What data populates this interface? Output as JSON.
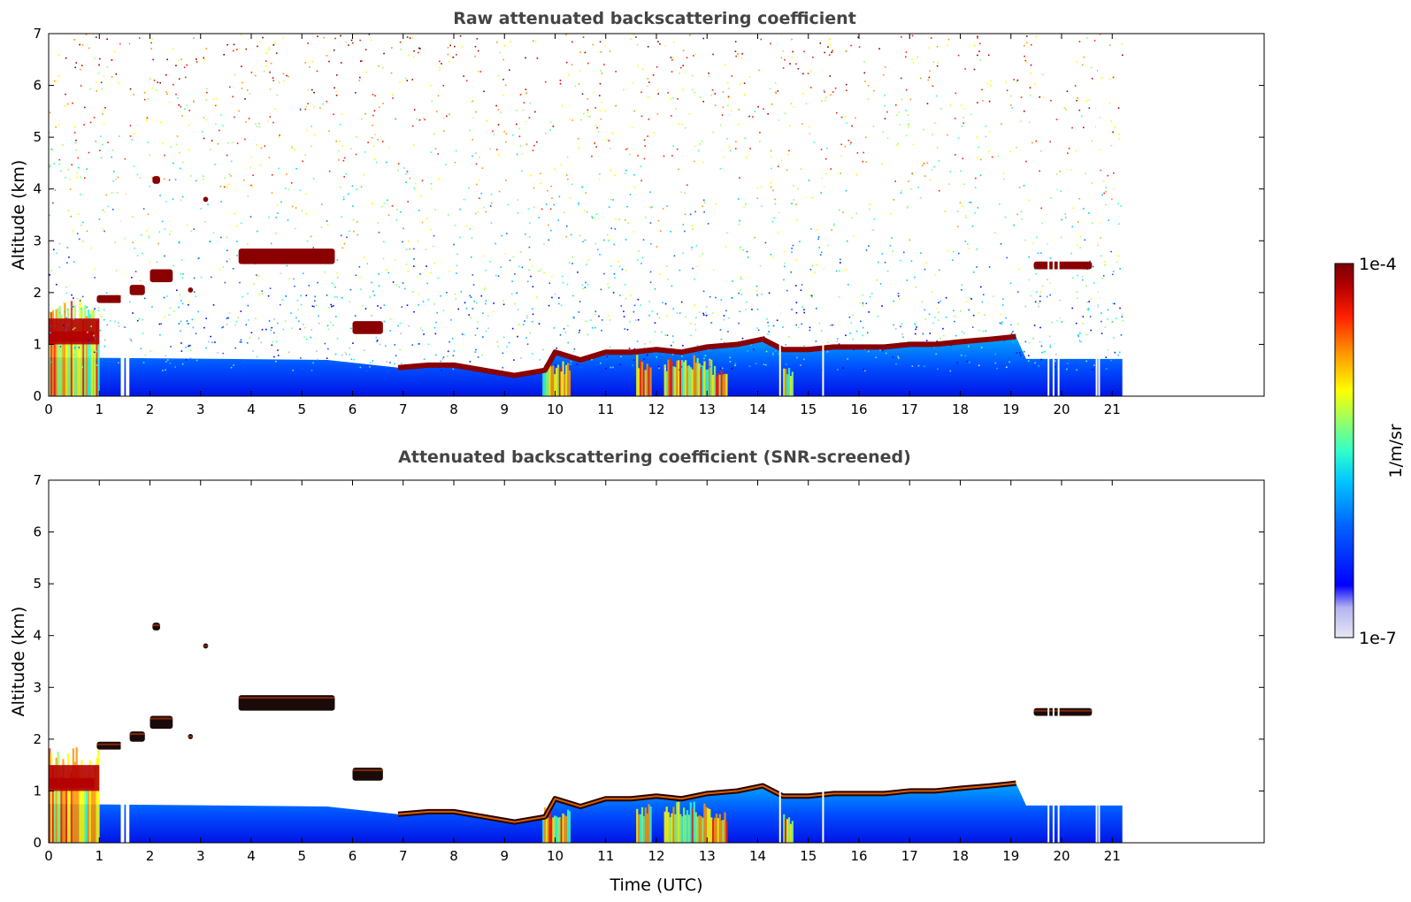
{
  "chart_data": [
    {
      "type": "heatmap",
      "title": "Raw attenuated backscattering coefficient",
      "xlabel": "",
      "ylabel": "Altitude (km)",
      "xlim": [
        0,
        24
      ],
      "ylim": [
        0,
        7
      ],
      "x_ticks": [
        "0",
        "1",
        "2",
        "3",
        "4",
        "5",
        "6",
        "7",
        "8",
        "9",
        "10",
        "11",
        "12",
        "13",
        "14",
        "15",
        "16",
        "17",
        "18",
        "19",
        "20",
        "21"
      ],
      "y_ticks": [
        "0",
        "1",
        "2",
        "3",
        "4",
        "5",
        "6",
        "7"
      ],
      "data_extent_hours": 21.2,
      "layers": [
        {
          "kind": "cloud",
          "x": [
            0.95,
            1.45
          ],
          "y": [
            1.8,
            1.95
          ],
          "level": 1.0
        },
        {
          "kind": "cloud",
          "x": [
            1.6,
            1.9
          ],
          "y": [
            1.95,
            2.15
          ],
          "level": 0.95
        },
        {
          "kind": "cloud",
          "x": [
            2.0,
            2.45
          ],
          "y": [
            2.2,
            2.45
          ],
          "level": 0.9
        },
        {
          "kind": "cloud",
          "x": [
            2.05,
            2.2
          ],
          "y": [
            4.1,
            4.25
          ],
          "level": 0.9
        },
        {
          "kind": "cloud",
          "x": [
            3.05,
            3.15
          ],
          "y": [
            3.75,
            3.85
          ],
          "level": 0.85
        },
        {
          "kind": "cloud",
          "x": [
            2.75,
            2.85
          ],
          "y": [
            2.0,
            2.1
          ],
          "level": 0.85
        },
        {
          "kind": "cloud",
          "x": [
            3.75,
            5.65
          ],
          "y": [
            2.55,
            2.85
          ],
          "level": 1.0
        },
        {
          "kind": "cloud",
          "x": [
            6.0,
            6.6
          ],
          "y": [
            1.2,
            1.45
          ],
          "level": 0.95
        },
        {
          "kind": "cloud",
          "x": [
            19.45,
            20.6
          ],
          "y": [
            2.45,
            2.6
          ],
          "level": 1.0
        }
      ],
      "boundary_layer_top_km": [
        {
          "x": 6.9,
          "y": 0.55
        },
        {
          "x": 7.5,
          "y": 0.6
        },
        {
          "x": 8.0,
          "y": 0.6
        },
        {
          "x": 8.6,
          "y": 0.5
        },
        {
          "x": 9.2,
          "y": 0.4
        },
        {
          "x": 9.8,
          "y": 0.5
        },
        {
          "x": 10.0,
          "y": 0.85
        },
        {
          "x": 10.5,
          "y": 0.7
        },
        {
          "x": 11.0,
          "y": 0.85
        },
        {
          "x": 11.5,
          "y": 0.85
        },
        {
          "x": 12.0,
          "y": 0.9
        },
        {
          "x": 12.5,
          "y": 0.85
        },
        {
          "x": 13.0,
          "y": 0.95
        },
        {
          "x": 13.6,
          "y": 1.0
        },
        {
          "x": 14.1,
          "y": 1.1
        },
        {
          "x": 14.5,
          "y": 0.9
        },
        {
          "x": 15.0,
          "y": 0.9
        },
        {
          "x": 15.5,
          "y": 0.95
        },
        {
          "x": 16.0,
          "y": 0.95
        },
        {
          "x": 16.5,
          "y": 0.95
        },
        {
          "x": 17.0,
          "y": 1.0
        },
        {
          "x": 17.5,
          "y": 1.0
        },
        {
          "x": 18.0,
          "y": 1.05
        },
        {
          "x": 18.6,
          "y": 1.1
        },
        {
          "x": 19.1,
          "y": 1.15
        }
      ],
      "data_gaps_hours": [
        1.45,
        1.55,
        14.45,
        15.3,
        19.75,
        19.85,
        19.95,
        20.7,
        20.75
      ]
    },
    {
      "type": "heatmap",
      "title": "Attenuated backscattering coefficient (SNR-screened)",
      "xlabel": "Time (UTC)",
      "ylabel": "Altitude (km)",
      "xlim": [
        0,
        24
      ],
      "ylim": [
        0,
        7
      ],
      "x_ticks": [
        "0",
        "1",
        "2",
        "3",
        "4",
        "5",
        "6",
        "7",
        "8",
        "9",
        "10",
        "11",
        "12",
        "13",
        "14",
        "15",
        "16",
        "17",
        "18",
        "19",
        "20",
        "21"
      ],
      "y_ticks": [
        "0",
        "1",
        "2",
        "3",
        "4",
        "5",
        "6",
        "7"
      ],
      "data_extent_hours": 21.2,
      "screening": "background noise removed above boundary layer"
    }
  ],
  "colorbar": {
    "label": "1/m/sr",
    "max_label": "1e-4",
    "min_label": "1e-7",
    "colormap": [
      "#e6e6f5",
      "#b4b4f0",
      "#0000ff",
      "#0064ff",
      "#00c8ff",
      "#32ffc8",
      "#96ff64",
      "#ffff00",
      "#ff9600",
      "#ff1e00",
      "#b40000",
      "#7a0000"
    ]
  }
}
